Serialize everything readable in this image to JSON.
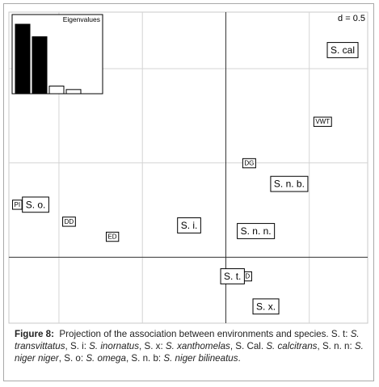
{
  "chart_data": {
    "type": "scatter",
    "scale_label": "d = 0.5",
    "grid": true,
    "xlim": [
      -1.3,
      0.85
    ],
    "ylim": [
      -0.35,
      1.3
    ],
    "species": [
      {
        "label": "S. cal",
        "x": 0.7,
        "y": 1.1
      },
      {
        "label": "S. n. b.",
        "x": 0.38,
        "y": 0.39
      },
      {
        "label": "S. o.",
        "x": -1.14,
        "y": 0.28
      },
      {
        "label": "S. i.",
        "x": -0.22,
        "y": 0.17
      },
      {
        "label": "S. n. n.",
        "x": 0.18,
        "y": 0.14
      },
      {
        "label": "S. t.",
        "x": 0.04,
        "y": -0.1
      },
      {
        "label": "S. x.",
        "x": 0.24,
        "y": -0.26
      }
    ],
    "environments": [
      {
        "label": "VWT",
        "x": 0.58,
        "y": 0.72
      },
      {
        "label": "DG",
        "x": 0.14,
        "y": 0.5
      },
      {
        "label": "DD",
        "x": -0.94,
        "y": 0.19
      },
      {
        "label": "ED",
        "x": -0.68,
        "y": 0.11
      },
      {
        "label": "PI",
        "x": -1.25,
        "y": 0.28
      },
      {
        "label": "D",
        "x": 0.13,
        "y": -0.1
      }
    ],
    "eigenvalues": {
      "title": "Eigenvalues",
      "values": [
        1.0,
        0.82,
        0.11,
        0.06
      ],
      "filled": [
        true,
        true,
        false,
        false
      ]
    }
  },
  "caption": {
    "figure_label": "Figure 8:",
    "title": "Projection of the association between environments and species.",
    "entries": [
      {
        "abbr": "S. t:",
        "name": "S. transvittatus"
      },
      {
        "abbr": "S. i:",
        "name": "S. inornatus"
      },
      {
        "abbr": "S. x:",
        "name": "S. xanthomelas"
      },
      {
        "abbr": "S. Cal.",
        "name": "S. calcitrans"
      },
      {
        "abbr": "S. n. n:",
        "name": "S. niger niger"
      },
      {
        "abbr": "S. o:",
        "name": "S. omega"
      },
      {
        "abbr": "S. n. b:",
        "name": "S. niger bilineatus"
      }
    ]
  }
}
